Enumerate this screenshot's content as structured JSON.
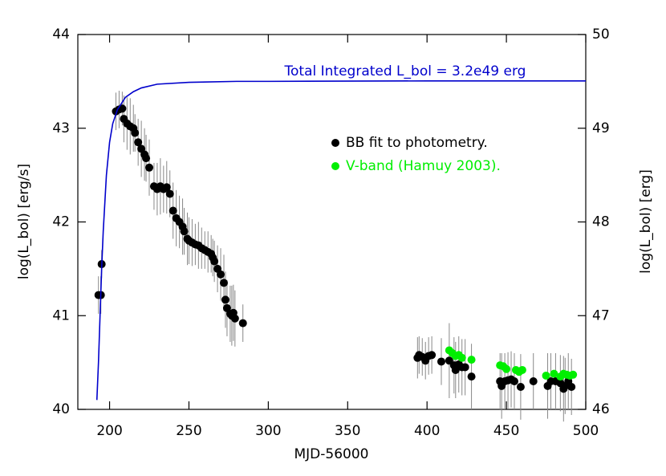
{
  "chart_data": {
    "type": "scatter",
    "xlabel": "MJD-56000",
    "ylabel": "log(L_bol) [erg/s]",
    "y2label": "log(L_bol) [erg]",
    "xlim": [
      180,
      500
    ],
    "ylim": [
      40,
      44
    ],
    "y2lim": [
      46,
      50
    ],
    "xticks": [
      200,
      250,
      300,
      350,
      400,
      450,
      500
    ],
    "yticks": [
      40,
      41,
      42,
      43,
      44
    ],
    "y2ticks": [
      46,
      47,
      48,
      49,
      50
    ],
    "series": [
      {
        "name": "BB fit to photometry.",
        "type": "scatter",
        "color": "#000000",
        "error_color": "#888888",
        "x": [
          193,
          194.5,
          195,
          204,
          206,
          208,
          209,
          211,
          213,
          215,
          216,
          218,
          220,
          222,
          223,
          225,
          228,
          230,
          232,
          234,
          236,
          238,
          240,
          242,
          244,
          246,
          247,
          249,
          250,
          252,
          254,
          256,
          258,
          260,
          262,
          264,
          265,
          266,
          268,
          270,
          272,
          273,
          274,
          276,
          277,
          278,
          279,
          284,
          394,
          395,
          397,
          399,
          401,
          403,
          409,
          414,
          417,
          418,
          420,
          422,
          424,
          428,
          446,
          447,
          449,
          451,
          453,
          455,
          459,
          467,
          476,
          478,
          481,
          484,
          486,
          487,
          489,
          491
        ],
        "values": [
          41.22,
          41.22,
          41.55,
          43.18,
          43.2,
          43.21,
          43.1,
          43.05,
          43.02,
          43.0,
          42.95,
          42.85,
          42.78,
          42.72,
          42.68,
          42.58,
          42.38,
          42.35,
          42.38,
          42.35,
          42.37,
          42.3,
          42.12,
          42.04,
          42.0,
          41.95,
          41.9,
          41.82,
          41.8,
          41.78,
          41.76,
          41.75,
          41.72,
          41.7,
          41.68,
          41.66,
          41.62,
          41.58,
          41.5,
          41.44,
          41.35,
          41.17,
          41.08,
          41.02,
          41.0,
          41.03,
          40.97,
          40.92,
          40.55,
          40.58,
          40.56,
          40.52,
          40.57,
          40.58,
          40.51,
          40.52,
          40.47,
          40.42,
          40.48,
          40.45,
          40.45,
          40.35,
          40.3,
          40.25,
          40.3,
          40.31,
          40.32,
          40.3,
          40.24,
          40.3,
          40.25,
          40.3,
          40.3,
          40.28,
          40.22,
          40.25,
          40.3,
          40.24
        ],
        "errors": [
          0.2,
          0.2,
          0.15,
          0.2,
          0.2,
          0.18,
          0.25,
          0.28,
          0.3,
          0.25,
          0.2,
          0.25,
          0.3,
          0.28,
          0.25,
          0.3,
          0.25,
          0.28,
          0.3,
          0.25,
          0.28,
          0.25,
          0.3,
          0.3,
          0.28,
          0.3,
          0.25,
          0.28,
          0.25,
          0.25,
          0.22,
          0.25,
          0.22,
          0.2,
          0.22,
          0.2,
          0.2,
          0.22,
          0.25,
          0.28,
          0.3,
          0.3,
          0.3,
          0.3,
          0.32,
          0.3,
          0.3,
          0.2,
          0.22,
          0.2,
          0.2,
          0.2,
          0.2,
          0.2,
          0.25,
          0.4,
          0.3,
          0.3,
          0.3,
          0.3,
          0.3,
          0.35,
          0.3,
          0.35,
          0.3,
          0.3,
          0.3,
          0.3,
          0.35,
          0.3,
          0.35,
          0.3,
          0.3,
          0.3,
          0.35,
          0.3,
          0.3,
          0.3
        ]
      },
      {
        "name": "V-band (Hamuy 2003).",
        "type": "scatter",
        "color": "#00ee00",
        "x": [
          414,
          416,
          418,
          420,
          422,
          428,
          446,
          448,
          450,
          456,
          458,
          460,
          475,
          480,
          484,
          486,
          488,
          490,
          492
        ],
        "values": [
          40.63,
          40.6,
          40.57,
          40.58,
          40.55,
          40.53,
          40.47,
          40.46,
          40.43,
          40.42,
          40.4,
          40.42,
          40.36,
          40.38,
          40.35,
          40.38,
          40.37,
          40.36,
          40.37
        ]
      },
      {
        "name": "Total Integrated L_bol = 3.2e49 erg",
        "type": "line",
        "axis": "y2",
        "color": "#0000cc",
        "x": [
          192,
          193,
          194,
          195,
          196,
          197,
          198,
          200,
          202,
          205,
          210,
          215,
          220,
          230,
          250,
          280,
          300,
          400,
          500
        ],
        "values": [
          46.1,
          46.5,
          47.0,
          47.5,
          47.9,
          48.2,
          48.5,
          48.85,
          49.05,
          49.2,
          49.33,
          49.39,
          49.43,
          49.47,
          49.49,
          49.5,
          49.5,
          49.505,
          49.505
        ]
      }
    ]
  }
}
